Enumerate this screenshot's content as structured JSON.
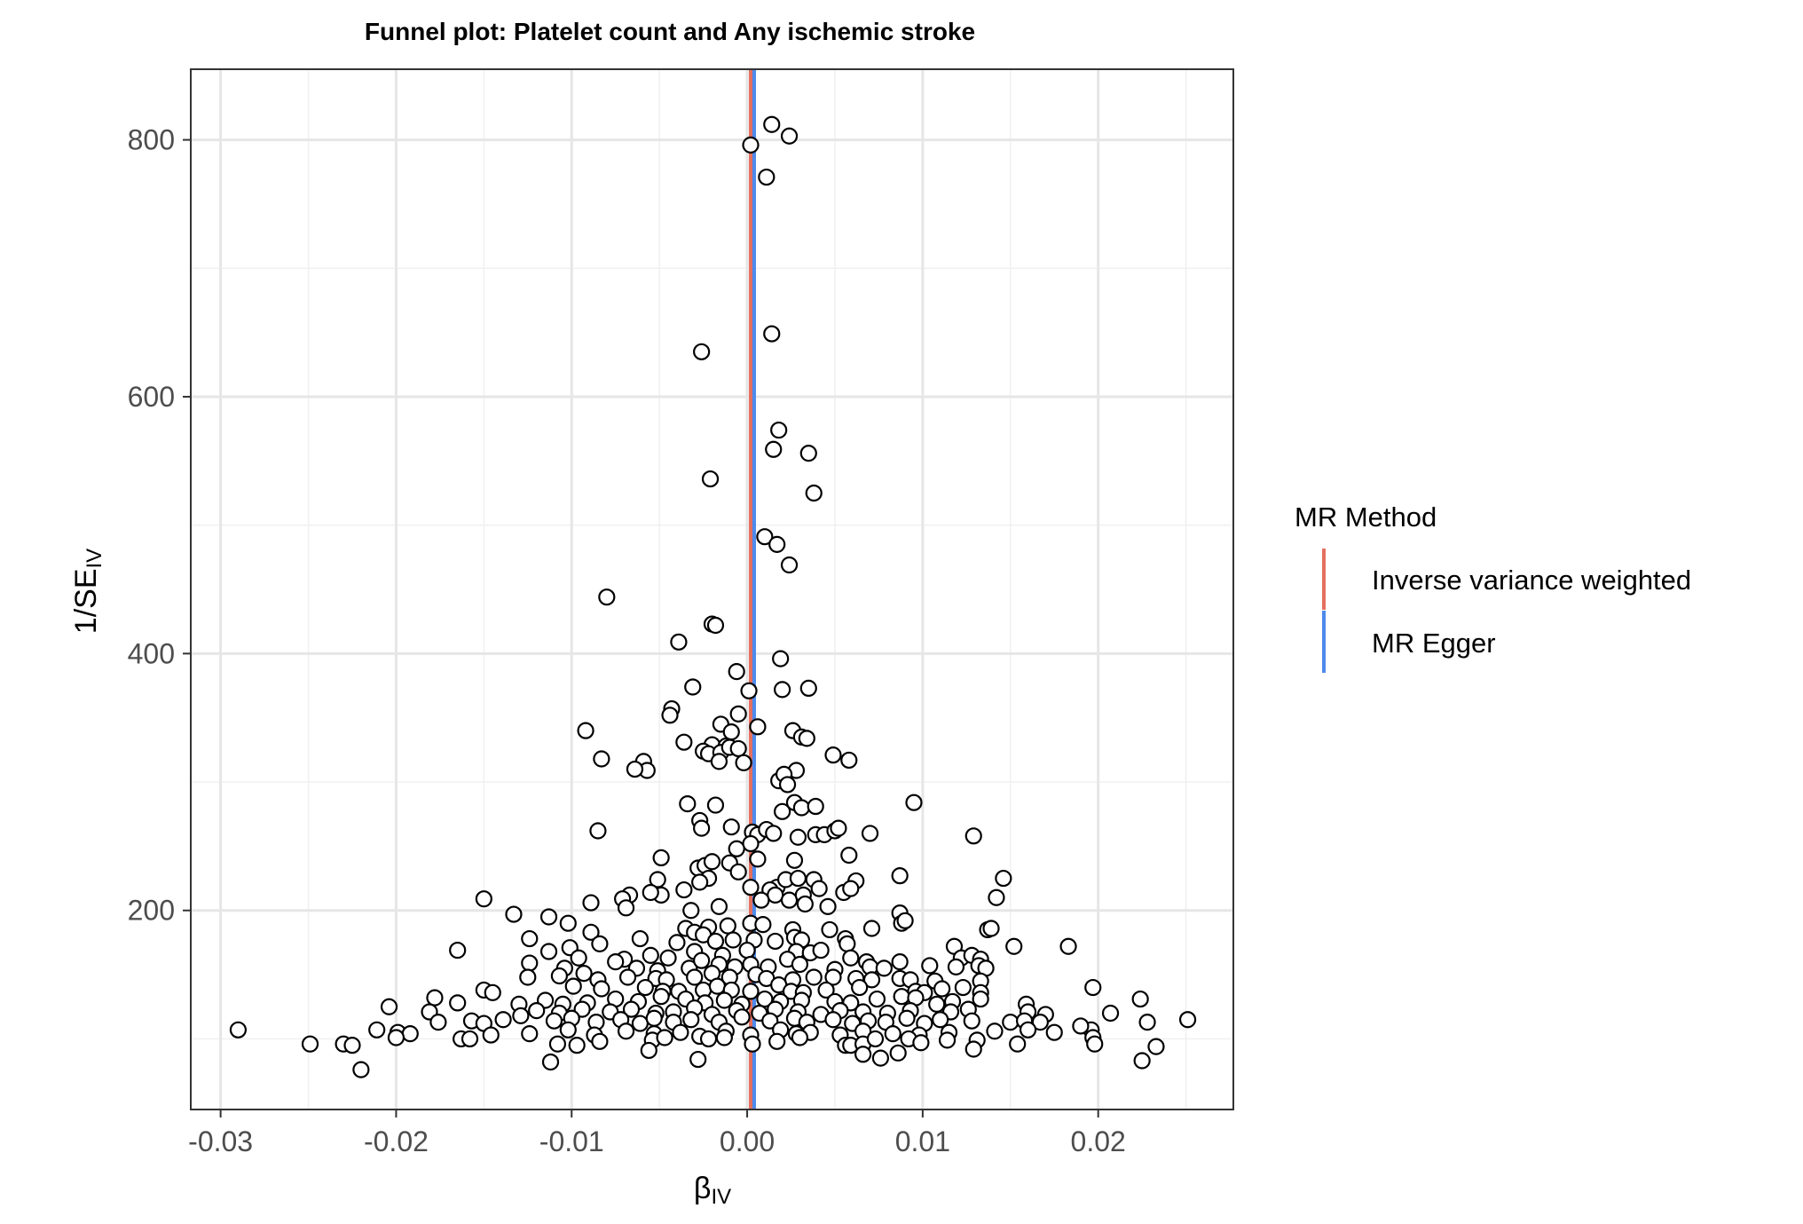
{
  "chart_data": {
    "type": "scatter",
    "title": "Funnel plot: Platelet count and Any ischemic stroke",
    "xlabel": {
      "main": "β",
      "sub": "IV"
    },
    "ylabel": {
      "main": "1/SE",
      "sub": "IV"
    },
    "xlim": [
      -0.0317,
      0.0277
    ],
    "ylim": [
      45,
      855
    ],
    "xticks": [
      -0.03,
      -0.02,
      -0.01,
      0.0,
      0.01,
      0.02
    ],
    "xtick_labels": [
      "-0.03",
      "-0.02",
      "-0.01",
      "0.00",
      "0.01",
      "0.02"
    ],
    "yticks": [
      200,
      400,
      600,
      800
    ],
    "ytick_labels": [
      "200",
      "400",
      "600",
      "800"
    ],
    "grid": true,
    "legend": {
      "title": "MR Method",
      "position": "right",
      "entries": [
        {
          "label": "Inverse variance weighted",
          "color": "#E4705F"
        },
        {
          "label": "MR Egger",
          "color": "#4E8AEC"
        }
      ]
    },
    "lines": [
      {
        "name": "Inverse variance weighted",
        "x": 0.0002,
        "color": "#E4705F"
      },
      {
        "name": "MR Egger",
        "x": 0.0004,
        "color": "#4E8AEC"
      }
    ],
    "points": [
      [
        0.0014,
        812
      ],
      [
        0.0024,
        803
      ],
      [
        0.0002,
        796
      ],
      [
        0.0011,
        771
      ],
      [
        0.0014,
        649
      ],
      [
        -0.0026,
        635
      ],
      [
        0.0018,
        574
      ],
      [
        0.0015,
        559
      ],
      [
        0.0035,
        556
      ],
      [
        -0.0021,
        536
      ],
      [
        0.0038,
        525
      ],
      [
        0.001,
        491
      ],
      [
        0.0017,
        485
      ],
      [
        0.0024,
        469
      ],
      [
        -0.008,
        444
      ],
      [
        -0.002,
        423
      ],
      [
        -0.0018,
        422
      ],
      [
        -0.0039,
        409
      ],
      [
        0.0019,
        396
      ],
      [
        -0.0006,
        386
      ],
      [
        -0.0031,
        374
      ],
      [
        0.0035,
        373
      ],
      [
        0.002,
        372
      ],
      [
        0.0001,
        371
      ],
      [
        -0.0043,
        357
      ],
      [
        -0.0044,
        352
      ],
      [
        -0.0005,
        353
      ],
      [
        -0.0092,
        340
      ],
      [
        -0.0015,
        345
      ],
      [
        0.0006,
        343
      ],
      [
        -0.0009,
        339
      ],
      [
        0.0026,
        340
      ],
      [
        0.0031,
        335
      ],
      [
        0.0034,
        334
      ],
      [
        -0.0036,
        331
      ],
      [
        -0.002,
        329
      ],
      [
        -0.0012,
        328
      ],
      [
        -0.0025,
        324
      ],
      [
        -0.0022,
        322
      ],
      [
        -0.0015,
        323
      ],
      [
        -0.001,
        327
      ],
      [
        -0.0005,
        326
      ],
      [
        -0.0016,
        316
      ],
      [
        -0.0002,
        315
      ],
      [
        0.0049,
        321
      ],
      [
        0.0058,
        317
      ],
      [
        -0.0083,
        318
      ],
      [
        -0.0059,
        316
      ],
      [
        -0.0057,
        309
      ],
      [
        -0.0064,
        310
      ],
      [
        0.0028,
        309
      ],
      [
        0.0018,
        301
      ],
      [
        0.0021,
        306
      ],
      [
        0.0023,
        298
      ],
      [
        -0.0034,
        283
      ],
      [
        -0.0018,
        282
      ],
      [
        0.0027,
        284
      ],
      [
        0.0031,
        280
      ],
      [
        0.002,
        277
      ],
      [
        0.0039,
        281
      ],
      [
        0.0095,
        284
      ],
      [
        -0.0027,
        270
      ],
      [
        -0.0026,
        264
      ],
      [
        -0.0009,
        265
      ],
      [
        0.0003,
        261
      ],
      [
        0.0006,
        259
      ],
      [
        0.0011,
        263
      ],
      [
        0.0015,
        260
      ],
      [
        0.0029,
        257
      ],
      [
        0.0039,
        259
      ],
      [
        0.0044,
        259
      ],
      [
        0.005,
        262
      ],
      [
        0.0052,
        264
      ],
      [
        0.007,
        260
      ],
      [
        0.0129,
        258
      ],
      [
        -0.0085,
        262
      ],
      [
        0.0002,
        252
      ],
      [
        -0.0006,
        248
      ],
      [
        0.0006,
        240
      ],
      [
        0.0027,
        239
      ],
      [
        0.0058,
        243
      ],
      [
        -0.0049,
        241
      ],
      [
        -0.0028,
        233
      ],
      [
        -0.0024,
        235
      ],
      [
        -0.002,
        238
      ],
      [
        -0.001,
        237
      ],
      [
        -0.0005,
        230
      ],
      [
        -0.0022,
        225
      ],
      [
        -0.0027,
        222
      ],
      [
        -0.0051,
        224
      ],
      [
        0.0017,
        218
      ],
      [
        0.0022,
        224
      ],
      [
        0.0029,
        225
      ],
      [
        0.0038,
        224
      ],
      [
        0.0062,
        223
      ],
      [
        0.0087,
        227
      ],
      [
        0.0146,
        225
      ],
      [
        -0.0036,
        216
      ],
      [
        -0.0049,
        212
      ],
      [
        -0.0055,
        214
      ],
      [
        -0.0067,
        212
      ],
      [
        -0.0071,
        209
      ],
      [
        0.0002,
        218
      ],
      [
        0.0013,
        216
      ],
      [
        0.0016,
        212
      ],
      [
        0.0024,
        208
      ],
      [
        0.0032,
        212
      ],
      [
        0.0041,
        217
      ],
      [
        0.0055,
        214
      ],
      [
        0.0059,
        217
      ],
      [
        0.0142,
        210
      ],
      [
        -0.015,
        209
      ],
      [
        -0.0089,
        206
      ],
      [
        -0.0069,
        202
      ],
      [
        -0.0032,
        200
      ],
      [
        -0.0016,
        203
      ],
      [
        0.0008,
        208
      ],
      [
        0.0033,
        205
      ],
      [
        0.0046,
        203
      ],
      [
        -0.0133,
        197
      ],
      [
        -0.0102,
        190
      ],
      [
        -0.0113,
        195
      ],
      [
        0.0087,
        198
      ],
      [
        0.0088,
        190
      ],
      [
        0.009,
        192
      ],
      [
        0.0071,
        186
      ],
      [
        0.0137,
        185
      ],
      [
        0.0139,
        186
      ],
      [
        -0.0089,
        183
      ],
      [
        -0.0035,
        186
      ],
      [
        -0.003,
        183
      ],
      [
        -0.0022,
        187
      ],
      [
        -0.0011,
        188
      ],
      [
        0.0002,
        190
      ],
      [
        0.0009,
        189
      ],
      [
        0.0026,
        185
      ],
      [
        0.0047,
        185
      ],
      [
        -0.0124,
        178
      ],
      [
        -0.0061,
        178
      ],
      [
        -0.004,
        175
      ],
      [
        -0.0025,
        181
      ],
      [
        -0.0018,
        176
      ],
      [
        -0.0008,
        177
      ],
      [
        0.0004,
        177
      ],
      [
        0.0016,
        176
      ],
      [
        0.0027,
        179
      ],
      [
        0.0031,
        177
      ],
      [
        0.0056,
        178
      ],
      [
        0.0057,
        174
      ],
      [
        0.0118,
        172
      ],
      [
        0.0152,
        172
      ],
      [
        0.0183,
        172
      ],
      [
        -0.0165,
        169
      ],
      [
        -0.0084,
        174
      ],
      [
        -0.0113,
        168
      ],
      [
        -0.0101,
        171
      ],
      [
        -0.0096,
        163
      ],
      [
        -0.007,
        162
      ],
      [
        -0.0055,
        165
      ],
      [
        -0.0045,
        163
      ],
      [
        -0.003,
        168
      ],
      [
        -0.0014,
        165
      ],
      [
        0.0,
        169
      ],
      [
        0.0028,
        168
      ],
      [
        0.0036,
        167
      ],
      [
        0.0042,
        169
      ],
      [
        0.0059,
        163
      ],
      [
        0.0068,
        160
      ],
      [
        0.0087,
        160
      ],
      [
        0.0122,
        163
      ],
      [
        0.0128,
        165
      ],
      [
        0.0133,
        162
      ],
      [
        -0.0124,
        159
      ],
      [
        -0.0104,
        155
      ],
      [
        -0.0075,
        160
      ],
      [
        -0.0063,
        155
      ],
      [
        -0.0051,
        153
      ],
      [
        -0.0033,
        155
      ],
      [
        -0.0026,
        161
      ],
      [
        -0.0016,
        158
      ],
      [
        -0.0007,
        156
      ],
      [
        0.0002,
        158
      ],
      [
        0.0012,
        156
      ],
      [
        0.0023,
        162
      ],
      [
        0.003,
        158
      ],
      [
        0.005,
        154
      ],
      [
        0.007,
        156
      ],
      [
        0.0078,
        155
      ],
      [
        0.0104,
        157
      ],
      [
        0.0119,
        156
      ],
      [
        0.0132,
        157
      ],
      [
        0.0136,
        155
      ],
      [
        -0.0125,
        148
      ],
      [
        -0.0107,
        149
      ],
      [
        -0.0093,
        151
      ],
      [
        -0.0085,
        146
      ],
      [
        -0.0068,
        148
      ],
      [
        -0.0052,
        147
      ],
      [
        -0.0046,
        146
      ],
      [
        -0.003,
        148
      ],
      [
        -0.002,
        151
      ],
      [
        -0.001,
        148
      ],
      [
        0.0005,
        150
      ],
      [
        0.0011,
        147
      ],
      [
        0.0026,
        146
      ],
      [
        0.0038,
        148
      ],
      [
        0.0049,
        148
      ],
      [
        0.0062,
        147
      ],
      [
        0.0071,
        146
      ],
      [
        0.0087,
        147
      ],
      [
        0.0093,
        146
      ],
      [
        0.0107,
        145
      ],
      [
        0.0133,
        145
      ],
      [
        -0.015,
        138
      ],
      [
        -0.0145,
        136
      ],
      [
        -0.0099,
        141
      ],
      [
        -0.0083,
        139
      ],
      [
        -0.0058,
        140
      ],
      [
        -0.0048,
        137
      ],
      [
        -0.0039,
        137
      ],
      [
        -0.0025,
        138
      ],
      [
        -0.0017,
        141
      ],
      [
        -0.0009,
        138
      ],
      [
        0.0002,
        137
      ],
      [
        0.0018,
        142
      ],
      [
        0.0025,
        137
      ],
      [
        0.0032,
        136
      ],
      [
        0.0045,
        138
      ],
      [
        0.0064,
        140
      ],
      [
        0.0096,
        137
      ],
      [
        0.0101,
        136
      ],
      [
        0.0111,
        139
      ],
      [
        0.0123,
        140
      ],
      [
        0.0133,
        136
      ],
      [
        0.0197,
        140
      ],
      [
        -0.0178,
        132
      ],
      [
        -0.0165,
        128
      ],
      [
        -0.013,
        127
      ],
      [
        -0.0115,
        130
      ],
      [
        -0.0105,
        127
      ],
      [
        -0.0091,
        128
      ],
      [
        -0.0075,
        131
      ],
      [
        -0.0062,
        129
      ],
      [
        -0.0049,
        133
      ],
      [
        -0.0035,
        131
      ],
      [
        -0.0024,
        128
      ],
      [
        -0.0013,
        130
      ],
      [
        -0.0003,
        127
      ],
      [
        0.001,
        131
      ],
      [
        0.0019,
        129
      ],
      [
        0.0031,
        130
      ],
      [
        0.005,
        129
      ],
      [
        0.0059,
        128
      ],
      [
        0.0074,
        131
      ],
      [
        0.0088,
        133
      ],
      [
        0.0096,
        132
      ],
      [
        0.0108,
        127
      ],
      [
        0.0117,
        129
      ],
      [
        0.0133,
        131
      ],
      [
        0.0159,
        127
      ],
      [
        0.0224,
        131
      ],
      [
        -0.0204,
        125
      ],
      [
        -0.0181,
        121
      ],
      [
        -0.0129,
        118
      ],
      [
        -0.012,
        122
      ],
      [
        -0.0107,
        120
      ],
      [
        -0.0094,
        123
      ],
      [
        -0.0078,
        121
      ],
      [
        -0.0066,
        123
      ],
      [
        -0.0052,
        120
      ],
      [
        -0.0042,
        121
      ],
      [
        -0.003,
        124
      ],
      [
        -0.002,
        119
      ],
      [
        -0.0006,
        122
      ],
      [
        0.0007,
        120
      ],
      [
        0.0016,
        123
      ],
      [
        0.0029,
        121
      ],
      [
        0.0042,
        119
      ],
      [
        0.0053,
        122
      ],
      [
        0.0066,
        121
      ],
      [
        0.008,
        120
      ],
      [
        0.0093,
        122
      ],
      [
        0.0116,
        121
      ],
      [
        0.0126,
        123
      ],
      [
        0.016,
        121
      ],
      [
        0.017,
        119
      ],
      [
        0.0207,
        120
      ],
      [
        -0.0176,
        113
      ],
      [
        -0.0157,
        114
      ],
      [
        -0.015,
        112
      ],
      [
        -0.0139,
        115
      ],
      [
        -0.011,
        114
      ],
      [
        -0.01,
        116
      ],
      [
        -0.0086,
        113
      ],
      [
        -0.0072,
        115
      ],
      [
        -0.0061,
        112
      ],
      [
        -0.0053,
        116
      ],
      [
        -0.0042,
        113
      ],
      [
        -0.0032,
        115
      ],
      [
        -0.0016,
        113
      ],
      [
        -0.0003,
        117
      ],
      [
        0.0013,
        114
      ],
      [
        0.0027,
        116
      ],
      [
        0.0034,
        113
      ],
      [
        0.0049,
        115
      ],
      [
        0.006,
        112
      ],
      [
        0.0069,
        114
      ],
      [
        0.0079,
        113
      ],
      [
        0.0091,
        116
      ],
      [
        0.0101,
        112
      ],
      [
        0.011,
        115
      ],
      [
        0.0128,
        114
      ],
      [
        0.015,
        113
      ],
      [
        0.0158,
        114
      ],
      [
        0.0167,
        113
      ],
      [
        0.0228,
        113
      ],
      [
        0.0251,
        115
      ],
      [
        -0.029,
        107
      ],
      [
        -0.0211,
        107
      ],
      [
        -0.0199,
        105
      ],
      [
        -0.0192,
        104
      ],
      [
        -0.0146,
        103
      ],
      [
        -0.0124,
        104
      ],
      [
        -0.0102,
        107
      ],
      [
        -0.0087,
        103
      ],
      [
        -0.0069,
        106
      ],
      [
        -0.0053,
        104
      ],
      [
        -0.0038,
        105
      ],
      [
        -0.0027,
        102
      ],
      [
        -0.0012,
        106
      ],
      [
        0.0002,
        103
      ],
      [
        0.0019,
        107
      ],
      [
        0.0028,
        104
      ],
      [
        0.0036,
        105
      ],
      [
        0.0053,
        103
      ],
      [
        0.0066,
        106
      ],
      [
        0.0083,
        104
      ],
      [
        0.0098,
        103
      ],
      [
        0.0115,
        105
      ],
      [
        0.0141,
        106
      ],
      [
        0.016,
        107
      ],
      [
        0.0175,
        105
      ],
      [
        0.0196,
        107
      ],
      [
        0.019,
        110
      ],
      [
        -0.02,
        101
      ],
      [
        -0.0163,
        100
      ],
      [
        -0.0158,
        100
      ],
      [
        -0.0108,
        96
      ],
      [
        -0.0097,
        95
      ],
      [
        -0.0084,
        98
      ],
      [
        -0.0054,
        99
      ],
      [
        -0.0047,
        101
      ],
      [
        -0.0022,
        100
      ],
      [
        -0.0013,
        101
      ],
      [
        0.0003,
        96
      ],
      [
        0.0017,
        98
      ],
      [
        0.003,
        101
      ],
      [
        0.0056,
        95
      ],
      [
        0.0059,
        95
      ],
      [
        0.0066,
        96
      ],
      [
        0.0073,
        100
      ],
      [
        0.0092,
        100
      ],
      [
        0.0099,
        97
      ],
      [
        0.0114,
        99
      ],
      [
        0.0131,
        99
      ],
      [
        0.0154,
        96
      ],
      [
        0.0197,
        101
      ],
      [
        0.0198,
        96
      ],
      [
        -0.0249,
        96
      ],
      [
        -0.023,
        96
      ],
      [
        -0.0225,
        95
      ],
      [
        -0.0056,
        91
      ],
      [
        0.0066,
        88
      ],
      [
        0.0086,
        89
      ],
      [
        0.0129,
        92
      ],
      [
        0.0233,
        94
      ],
      [
        -0.0028,
        84
      ],
      [
        -0.0112,
        82
      ],
      [
        0.0076,
        85
      ],
      [
        0.0225,
        83
      ],
      [
        -0.022,
        76
      ]
    ]
  }
}
